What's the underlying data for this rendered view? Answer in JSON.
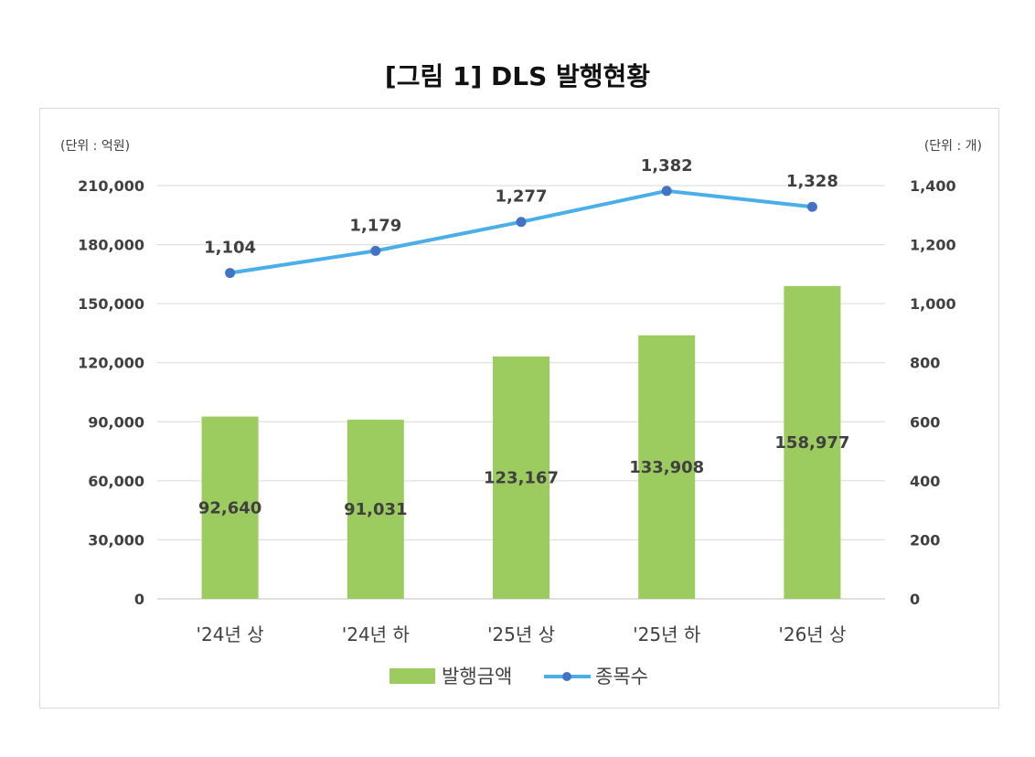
{
  "title": "[그림 1] DLS 발행현황",
  "chart_data": {
    "type": "bar",
    "categories": [
      "'24년 상",
      "'24년 하",
      "'25년 상",
      "'25년 하",
      "'26년 상"
    ],
    "series": [
      {
        "name": "발행금액",
        "type": "bar",
        "axis": "left",
        "color": "#9ccc5f",
        "values": [
          92640,
          91031,
          123167,
          133908,
          158977
        ],
        "labels": [
          "92,640",
          "91,031",
          "123,167",
          "133,908",
          "158,977"
        ]
      },
      {
        "name": "종목수",
        "type": "line",
        "axis": "right",
        "color": "#4aaee8",
        "marker_color": "#4472c4",
        "values": [
          1104,
          1179,
          1277,
          1382,
          1328
        ],
        "labels": [
          "1,104",
          "1,179",
          "1,277",
          "1,382",
          "1,328"
        ]
      }
    ],
    "y_left": {
      "unit_label": "(단위 : 억원)",
      "range": [
        0,
        210000
      ],
      "ticks": [
        "0",
        "30,000",
        "60,000",
        "90,000",
        "120,000",
        "150,000",
        "180,000",
        "210,000"
      ]
    },
    "y_right": {
      "unit_label": "(단위 : 개)",
      "range": [
        0,
        1400
      ],
      "ticks": [
        "0",
        "200",
        "400",
        "600",
        "800",
        "1,000",
        "1,200",
        "1,400"
      ]
    },
    "grid": true,
    "legend_position": "bottom"
  }
}
